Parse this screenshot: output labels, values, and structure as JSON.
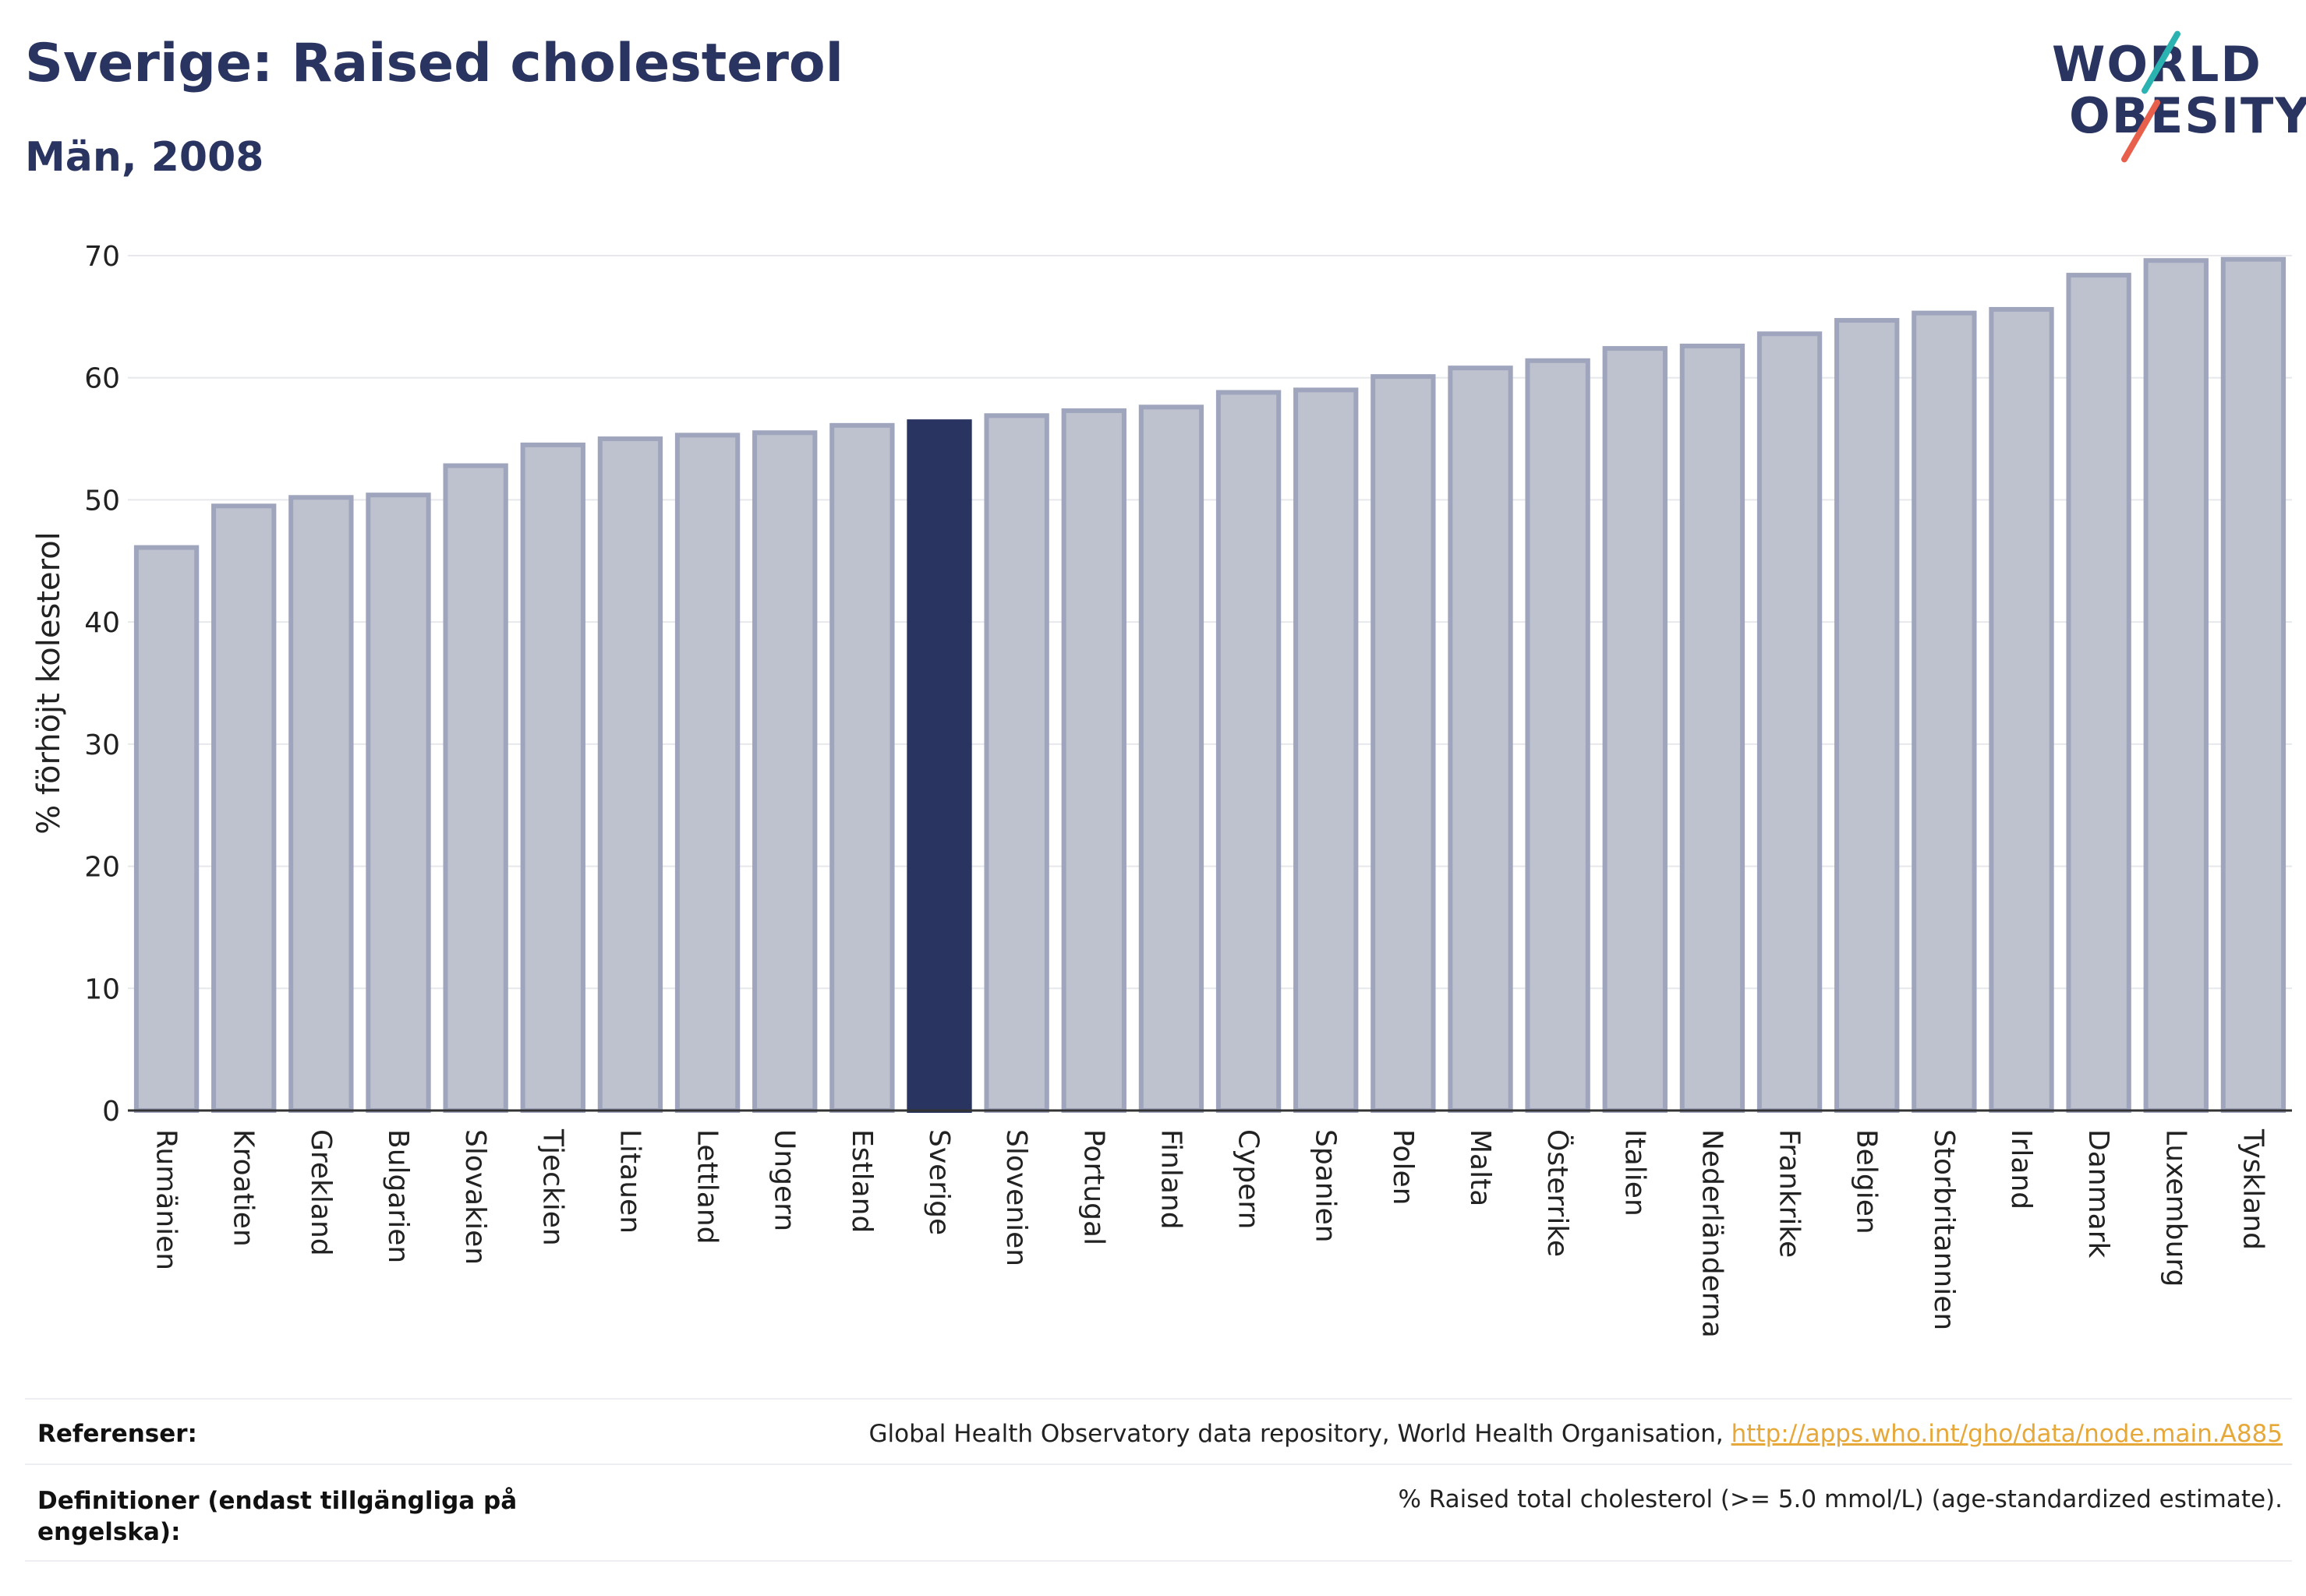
{
  "header": {
    "title": "Sverige: Raised cholesterol",
    "subtitle": "Män, 2008"
  },
  "logo": {
    "line1": "WORLD",
    "line2": "OBESITY",
    "accent_teal": "#2bb3b1",
    "accent_coral": "#e8604c"
  },
  "colors": {
    "bar_default": "#bec2cf",
    "bar_stroke": "#9fa5bc",
    "bar_highlight": "#2a3460"
  },
  "chart_data": {
    "type": "bar",
    "title": "Sverige: Raised cholesterol",
    "subtitle": "Män, 2008",
    "ylabel": "% förhöjt kolesterol",
    "xlabel": "",
    "ylim": [
      0,
      70
    ],
    "yticks": [
      0,
      10,
      20,
      30,
      40,
      50,
      60,
      70
    ],
    "grid": true,
    "highlight": "Sverige",
    "categories": [
      "Rumänien",
      "Kroatien",
      "Grekland",
      "Bulgarien",
      "Slovakien",
      "Tjeckien",
      "Litauen",
      "Lettland",
      "Ungern",
      "Estland",
      "Sverige",
      "Slovenien",
      "Portugal",
      "Finland",
      "Cypern",
      "Spanien",
      "Polen",
      "Malta",
      "Österrike",
      "Italien",
      "Nederländerna",
      "Frankrike",
      "Belgien",
      "Storbritannien",
      "Irland",
      "Danmark",
      "Luxemburg",
      "Tyskland"
    ],
    "values": [
      46.1,
      49.5,
      50.2,
      50.4,
      52.8,
      54.5,
      55.0,
      55.3,
      55.5,
      56.1,
      56.4,
      56.9,
      57.3,
      57.6,
      58.8,
      59.0,
      60.1,
      60.8,
      61.4,
      62.4,
      62.6,
      63.6,
      64.7,
      65.3,
      65.6,
      68.4,
      69.6,
      69.7
    ]
  },
  "footer": {
    "references_label": "Referenser:",
    "references_text": "Global Health Observatory data repository, World Health Organisation,",
    "references_link": "http://apps.who.int/gho/data/node.main.A885",
    "definitions_label": "Definitioner (endast tillgängliga på engelska):",
    "definitions_text": "% Raised total cholesterol (>= 5.0 mmol/L) (age-standardized estimate)."
  }
}
